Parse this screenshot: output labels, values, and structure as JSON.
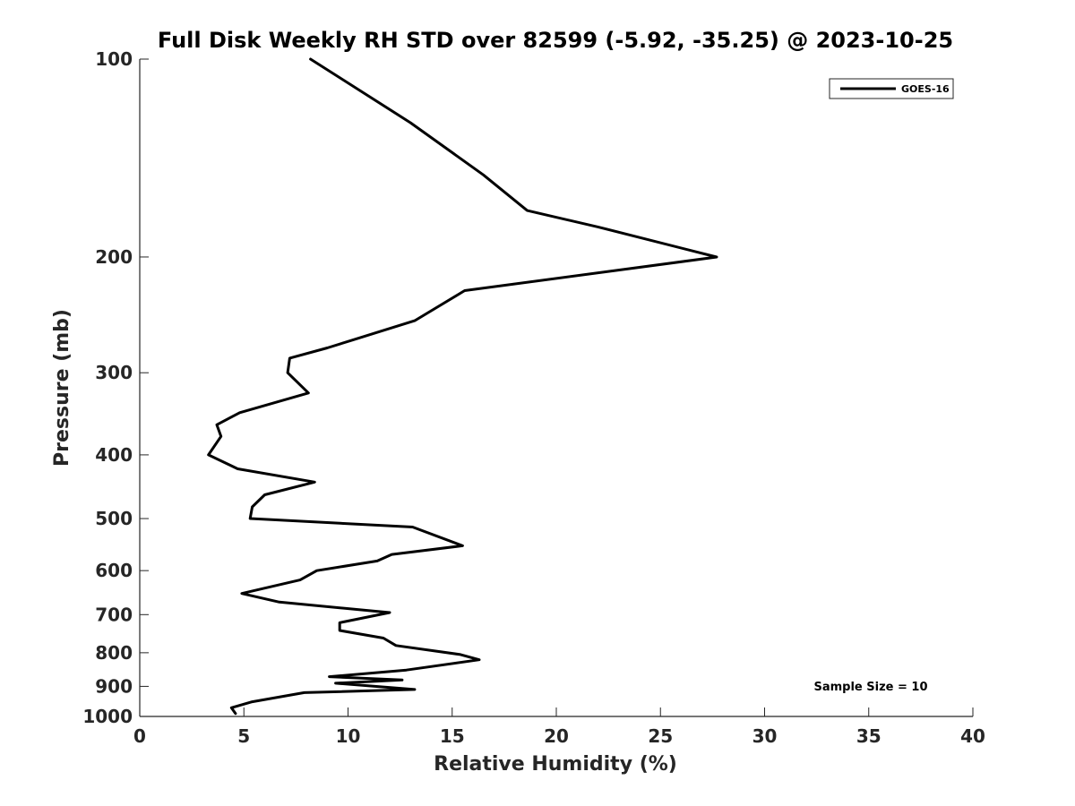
{
  "chart_data": {
    "type": "line",
    "title": "Full Disk Weekly RH STD over 82599 (-5.92, -35.25) @ 2023-10-25",
    "xlabel": "Relative Humidity (%)",
    "ylabel": "Pressure (mb)",
    "xlim": [
      0,
      40
    ],
    "ylim": [
      100,
      1000
    ],
    "yscale": "log",
    "y_reversed": true,
    "x_ticks": [
      0,
      5,
      10,
      15,
      20,
      25,
      30,
      35,
      40
    ],
    "x_tick_labels": [
      "0",
      "5",
      "10",
      "15",
      "20",
      "25",
      "30",
      "35",
      "40"
    ],
    "y_ticks": [
      100,
      200,
      300,
      400,
      500,
      600,
      700,
      800,
      900,
      1000
    ],
    "y_tick_labels": [
      "100",
      "200",
      "300",
      "400",
      "500",
      "600",
      "700",
      "800",
      "900",
      "1000"
    ],
    "legend": {
      "location": "top-right",
      "entries": [
        "GOES-16"
      ]
    },
    "annotation": "Sample Size = 10",
    "grid": false,
    "series": [
      {
        "name": "GOES-16",
        "color": "#000000",
        "x": [
          8.2,
          13.0,
          16.5,
          18.6,
          22.0,
          27.7,
          15.6,
          13.2,
          9.0,
          7.2,
          7.1,
          8.1,
          4.8,
          3.7,
          3.9,
          3.3,
          4.7,
          8.4,
          6.0,
          5.4,
          5.3,
          13.1,
          15.5,
          12.1,
          11.4,
          8.5,
          7.7,
          4.9,
          6.7,
          12.0,
          9.6,
          9.6,
          11.7,
          12.3,
          15.4,
          16.3,
          12.8,
          9.1,
          12.6,
          9.4,
          13.2,
          7.9,
          5.4,
          4.4,
          4.6
        ],
        "y": [
          100,
          125,
          150,
          170,
          180,
          200,
          225,
          250,
          275,
          285,
          300,
          322,
          345,
          360,
          375,
          400,
          420,
          440,
          460,
          480,
          500,
          515,
          550,
          567,
          580,
          600,
          620,
          650,
          670,
          695,
          720,
          740,
          760,
          780,
          805,
          820,
          850,
          870,
          880,
          890,
          910,
          920,
          950,
          970,
          990
        ]
      }
    ]
  }
}
